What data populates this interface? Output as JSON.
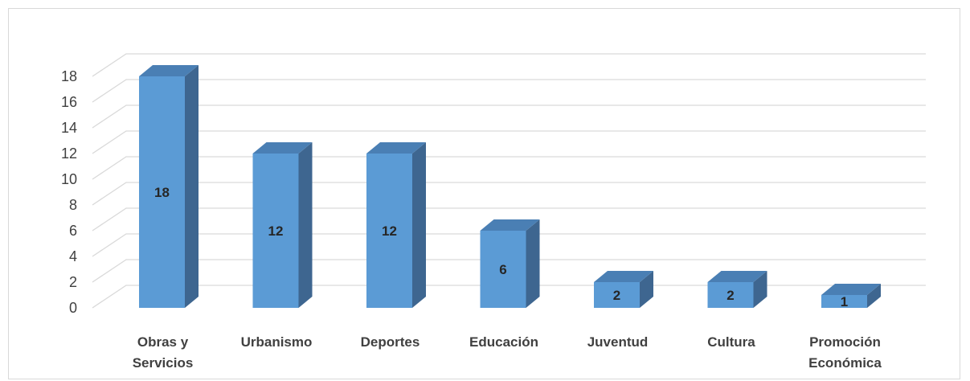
{
  "chart_data": {
    "type": "bar",
    "style": "3d-column",
    "title": "",
    "xlabel": "",
    "ylabel": "",
    "categories": [
      [
        "Obras y",
        "Servicios"
      ],
      [
        "Urbanismo"
      ],
      [
        "Deportes"
      ],
      [
        "Educación"
      ],
      [
        "Juventud"
      ],
      [
        "Cultura"
      ],
      [
        "Promoción",
        "Económica"
      ]
    ],
    "values": [
      18,
      12,
      12,
      6,
      2,
      2,
      1
    ],
    "data_labels": [
      "18",
      "12",
      "12",
      "6",
      "2",
      "2",
      "1"
    ],
    "ylim": [
      0,
      18
    ],
    "yticks": [
      "0",
      "2",
      "4",
      "6",
      "8",
      "10",
      "12",
      "14",
      "16",
      "18"
    ],
    "grid": true,
    "legend": "none",
    "colors": {
      "front": "#5b9bd5",
      "side": "#3e6690",
      "top": "#4a7fb4",
      "grid": "#d9d9d9",
      "text": "#404040"
    }
  }
}
